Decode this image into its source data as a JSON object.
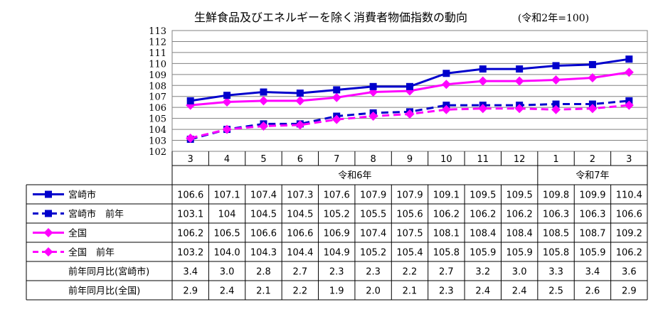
{
  "chart_data": {
    "type": "line",
    "title": "生鮮食品及びエネルギーを除く消費者物価指数の動向",
    "subtitle": "(令和2年=100)",
    "ylim": [
      102,
      113
    ],
    "yticks": [
      "102",
      "103",
      "104",
      "105",
      "106",
      "107",
      "108",
      "109",
      "110",
      "111",
      "112",
      "113"
    ],
    "grid": true,
    "categories": [
      "3",
      "4",
      "5",
      "6",
      "7",
      "8",
      "9",
      "10",
      "11",
      "12",
      "1",
      "2",
      "3"
    ],
    "year_groups": [
      {
        "label": "令和6年",
        "count": 10
      },
      {
        "label": "令和7年",
        "count": 3
      }
    ],
    "series": [
      {
        "name": "宮崎市",
        "color": "#0000CC",
        "dash": false,
        "marker": "square",
        "values": [
          106.6,
          107.1,
          107.4,
          107.3,
          107.6,
          107.9,
          107.9,
          109.1,
          109.5,
          109.5,
          109.8,
          109.9,
          110.4
        ],
        "labels": [
          "106.6",
          "107.1",
          "107.4",
          "107.3",
          "107.6",
          "107.9",
          "107.9",
          "109.1",
          "109.5",
          "109.5",
          "109.8",
          "109.9",
          "110.4"
        ]
      },
      {
        "name": "宮崎市　前年",
        "color": "#0000CC",
        "dash": true,
        "marker": "square",
        "values": [
          103.1,
          104,
          104.5,
          104.5,
          105.2,
          105.5,
          105.6,
          106.2,
          106.2,
          106.2,
          106.3,
          106.3,
          106.6
        ],
        "labels": [
          "103.1",
          "104",
          "104.5",
          "104.5",
          "105.2",
          "105.5",
          "105.6",
          "106.2",
          "106.2",
          "106.2",
          "106.3",
          "106.3",
          "106.6"
        ]
      },
      {
        "name": "全国",
        "color": "#FF00FF",
        "dash": false,
        "marker": "diamond",
        "values": [
          106.2,
          106.5,
          106.6,
          106.6,
          106.9,
          107.4,
          107.5,
          108.1,
          108.4,
          108.4,
          108.5,
          108.7,
          109.2
        ],
        "labels": [
          "106.2",
          "106.5",
          "106.6",
          "106.6",
          "106.9",
          "107.4",
          "107.5",
          "108.1",
          "108.4",
          "108.4",
          "108.5",
          "108.7",
          "109.2"
        ]
      },
      {
        "name": "全国　前年",
        "color": "#FF00FF",
        "dash": true,
        "marker": "diamond",
        "values": [
          103.2,
          104.0,
          104.3,
          104.4,
          104.9,
          105.2,
          105.4,
          105.8,
          105.9,
          105.9,
          105.8,
          105.9,
          106.2
        ],
        "labels": [
          "103.2",
          "104.0",
          "104.3",
          "104.4",
          "104.9",
          "105.2",
          "105.4",
          "105.8",
          "105.9",
          "105.9",
          "105.8",
          "105.9",
          "106.2"
        ]
      }
    ],
    "table_rows": [
      {
        "name": "前年同月比(宮崎市)",
        "labels": [
          "3.4",
          "3.0",
          "2.8",
          "2.7",
          "2.3",
          "2.3",
          "2.2",
          "2.7",
          "3.2",
          "3.0",
          "3.3",
          "3.4",
          "3.6"
        ]
      },
      {
        "name": "前年同月比(全国)",
        "labels": [
          "2.9",
          "2.4",
          "2.1",
          "2.2",
          "1.9",
          "2.0",
          "2.1",
          "2.3",
          "2.4",
          "2.4",
          "2.5",
          "2.6",
          "2.9"
        ]
      }
    ]
  }
}
